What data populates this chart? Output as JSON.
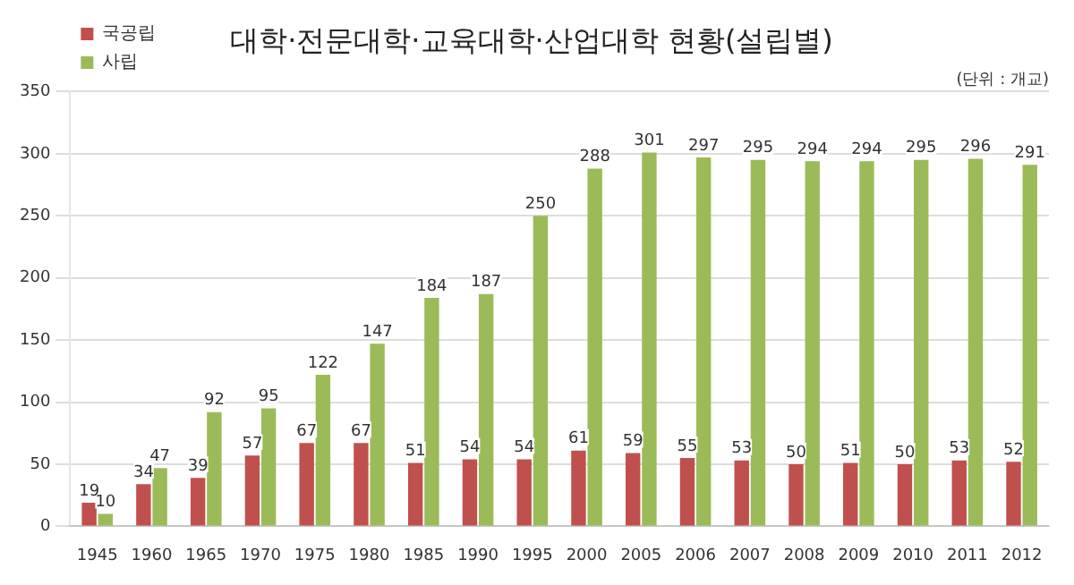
{
  "chart_data": {
    "type": "bar",
    "title": "대학·전문대학·교육대학·산업대학 현황(설립별)",
    "annotations": [
      "(단위 : 개교)"
    ],
    "categories": [
      "1945",
      "1960",
      "1965",
      "1970",
      "1975",
      "1980",
      "1985",
      "1990",
      "1995",
      "2000",
      "2005",
      "2006",
      "2007",
      "2008",
      "2009",
      "2010",
      "2011",
      "2012"
    ],
    "series": [
      {
        "name": "국공립",
        "color": "#c0504d",
        "values": [
          19,
          34,
          39,
          57,
          67,
          67,
          51,
          54,
          54,
          61,
          59,
          55,
          53,
          50,
          51,
          50,
          53,
          52
        ]
      },
      {
        "name": "사립",
        "color": "#9bbb59",
        "values": [
          10,
          47,
          92,
          95,
          122,
          147,
          184,
          187,
          250,
          288,
          301,
          297,
          295,
          294,
          294,
          295,
          296,
          291
        ]
      }
    ],
    "ylim": [
      0,
      350
    ],
    "yticks": [
      0,
      50,
      100,
      150,
      200,
      250,
      300,
      350
    ],
    "grid": "y",
    "legend": "top left",
    "data_labels": true
  }
}
